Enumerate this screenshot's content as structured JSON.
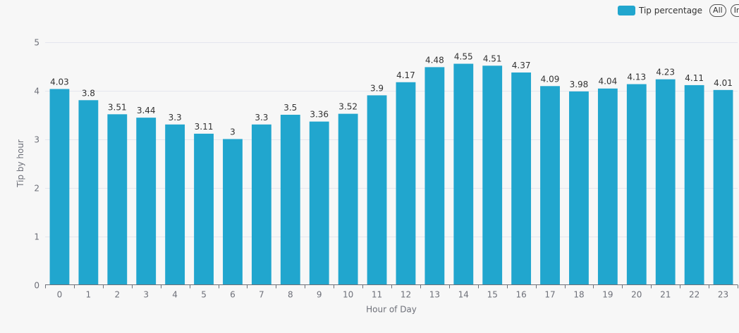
{
  "legend": {
    "series_label": "Tip percentage",
    "all_button": "All",
    "inverse_button": "In"
  },
  "colors": {
    "bar": "#21a6ce",
    "grid": "#e4e6ee",
    "axis": "#6e7079",
    "label": "#333333",
    "background": "#f7f7f7"
  },
  "chart_data": {
    "type": "bar",
    "xlabel": "Hour of Day",
    "ylabel": "Tip by hour",
    "ylim": [
      0,
      5
    ],
    "yticks": [
      "0",
      "1",
      "2",
      "3",
      "4",
      "5"
    ],
    "grid": true,
    "legend_position": "top-right",
    "categories": [
      "0",
      "1",
      "2",
      "3",
      "4",
      "5",
      "6",
      "7",
      "8",
      "9",
      "10",
      "11",
      "12",
      "13",
      "14",
      "15",
      "16",
      "17",
      "18",
      "19",
      "20",
      "21",
      "22",
      "23"
    ],
    "series": [
      {
        "name": "Tip percentage",
        "values": [
          4.03,
          3.8,
          3.51,
          3.44,
          3.3,
          3.11,
          3,
          3.3,
          3.5,
          3.36,
          3.52,
          3.9,
          4.17,
          4.48,
          4.55,
          4.51,
          4.37,
          4.09,
          3.98,
          4.04,
          4.13,
          4.23,
          4.11,
          4.01
        ],
        "labels": [
          "4.03",
          "3.8",
          "3.51",
          "3.44",
          "3.3",
          "3.11",
          "3",
          "3.3",
          "3.5",
          "3.36",
          "3.52",
          "3.9",
          "4.17",
          "4.48",
          "4.55",
          "4.51",
          "4.37",
          "4.09",
          "3.98",
          "4.04",
          "4.13",
          "4.23",
          "4.11",
          "4.01"
        ]
      }
    ]
  }
}
